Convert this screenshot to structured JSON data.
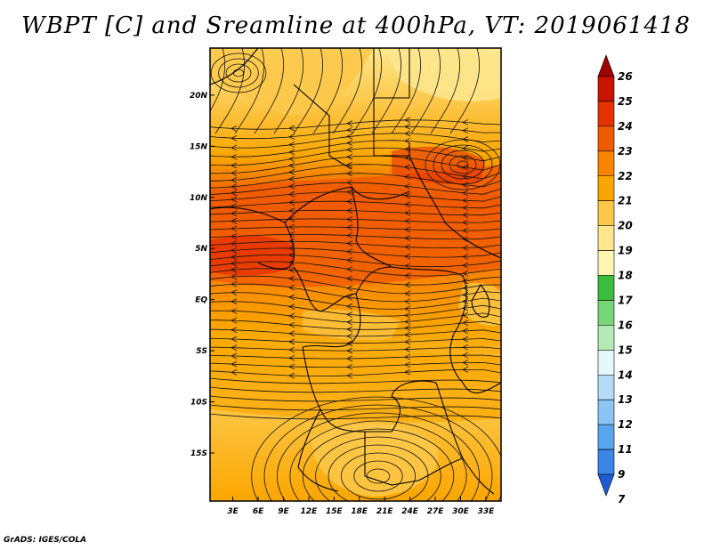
{
  "title": "WBPT [C] and Sreamline at 400hPa, VT: 2019061418",
  "credit": "GrADS: IGES/COLA",
  "map": {
    "lon_labels": [
      "3E",
      "6E",
      "9E",
      "12E",
      "15E",
      "18E",
      "21E",
      "24E",
      "27E",
      "30E",
      "33E"
    ],
    "lon_values": [
      3,
      6,
      9,
      12,
      15,
      18,
      21,
      24,
      27,
      30,
      33
    ],
    "lon_range": [
      0.3,
      34.8
    ],
    "lat_labels": [
      "20N",
      "15N",
      "10N",
      "5N",
      "EQ",
      "5S",
      "10S",
      "15S"
    ],
    "lat_values": [
      20,
      15,
      10,
      5,
      0,
      -5,
      -10,
      -15
    ],
    "lat_range": [
      -19.7,
      24.6
    ]
  },
  "colorbar": {
    "labels": [
      "26",
      "25",
      "24",
      "23",
      "22",
      "21",
      "20",
      "19",
      "18",
      "17",
      "16",
      "15",
      "14",
      "13",
      "12",
      "11",
      "9",
      "7"
    ],
    "colors": [
      "#a00000",
      "#c81400",
      "#e63200",
      "#f05a00",
      "#f98400",
      "#fba600",
      "#fdc84a",
      "#fde68c",
      "#fff6b4",
      "#3cbc3c",
      "#78d678",
      "#b4eab4",
      "#e6f8f8",
      "#b4dcf8",
      "#8cc4f4",
      "#5aa6ee",
      "#3a86e6",
      "#1e5ad2"
    ]
  }
}
